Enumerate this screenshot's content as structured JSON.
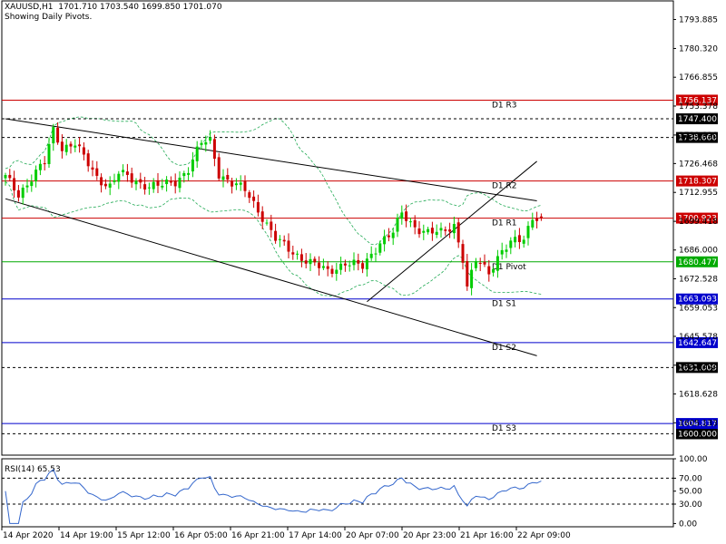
{
  "header": {
    "line1": "XAUUSD,H1  1701.710 1703.540 1699.850 1701.070",
    "line2": "Showing Daily Pivots."
  },
  "colors": {
    "bull": "#00cc00",
    "bear": "#cc0000",
    "band": "#22aa55",
    "resistance": "#cc0000",
    "pivot": "#00aa00",
    "support": "#0000cc",
    "trendline": "#000000",
    "rsi": "#3366cc",
    "axis": "#000000"
  },
  "chart_data": [
    {
      "type": "candlestick",
      "symbol": "XAUUSD",
      "timeframe": "H1",
      "ylim": [
        1590,
        1803
      ],
      "y_ticks": [
        "1793.885",
        "1780.320",
        "1766.855",
        "1753.378",
        "1739.820",
        "1726.468",
        "1712.955",
        "1699.418",
        "1686.000",
        "1672.528",
        "1659.053",
        "1645.578",
        "1632.103",
        "1618.628",
        "1605.133"
      ],
      "x_ticks": [
        "14 Apr 2020",
        "14 Apr 19:00",
        "15 Apr 12:00",
        "16 Apr 05:00",
        "16 Apr 21:00",
        "17 Apr 14:00",
        "20 Apr 07:00",
        "20 Apr 23:00",
        "21 Apr 16:00",
        "22 Apr 09:00"
      ],
      "pivot_levels": [
        {
          "name": "D1 R3",
          "value": 1756.137,
          "label": "1756.137",
          "kind": "resistance"
        },
        {
          "name": "D1 R2",
          "value": 1718.307,
          "label": "1718.307",
          "kind": "resistance"
        },
        {
          "name": "D1 R1",
          "value": 1700.923,
          "label": "1700.923",
          "kind": "resistance"
        },
        {
          "name": "D1 Pivot",
          "value": 1680.477,
          "label": "1680.477",
          "kind": "pivot"
        },
        {
          "name": "D1 S1",
          "value": 1663.093,
          "label": "1663.093",
          "kind": "support"
        },
        {
          "name": "D1 S2",
          "value": 1642.647,
          "label": "1642.647",
          "kind": "support"
        },
        {
          "name": "D1 S3",
          "value": 1604.817,
          "label": "1604.817",
          "kind": "support"
        }
      ],
      "dashed_levels": [
        {
          "value": 1747.4,
          "label": "1747.400"
        },
        {
          "value": 1738.66,
          "label": "1738.660"
        },
        {
          "value": 1631.009,
          "label": "1631.009"
        },
        {
          "value": 1600.0,
          "label": "1600.000"
        }
      ],
      "trendlines": [
        {
          "from": [
            0,
            1747.4
          ],
          "to": [
            122,
            1709.0
          ]
        },
        {
          "from": [
            0,
            1710.0
          ],
          "to": [
            122,
            1636.5
          ]
        },
        {
          "from": [
            83,
            1661.8
          ],
          "to": [
            122,
            1727.5
          ]
        }
      ]
    },
    {
      "type": "line",
      "title": "RSI(14) 65.53",
      "ylim": [
        -5,
        100
      ],
      "y_ticks": [
        "100.00",
        "70.00",
        "50.00",
        "30.00",
        "0.00"
      ],
      "levels": [
        70,
        30
      ]
    }
  ]
}
